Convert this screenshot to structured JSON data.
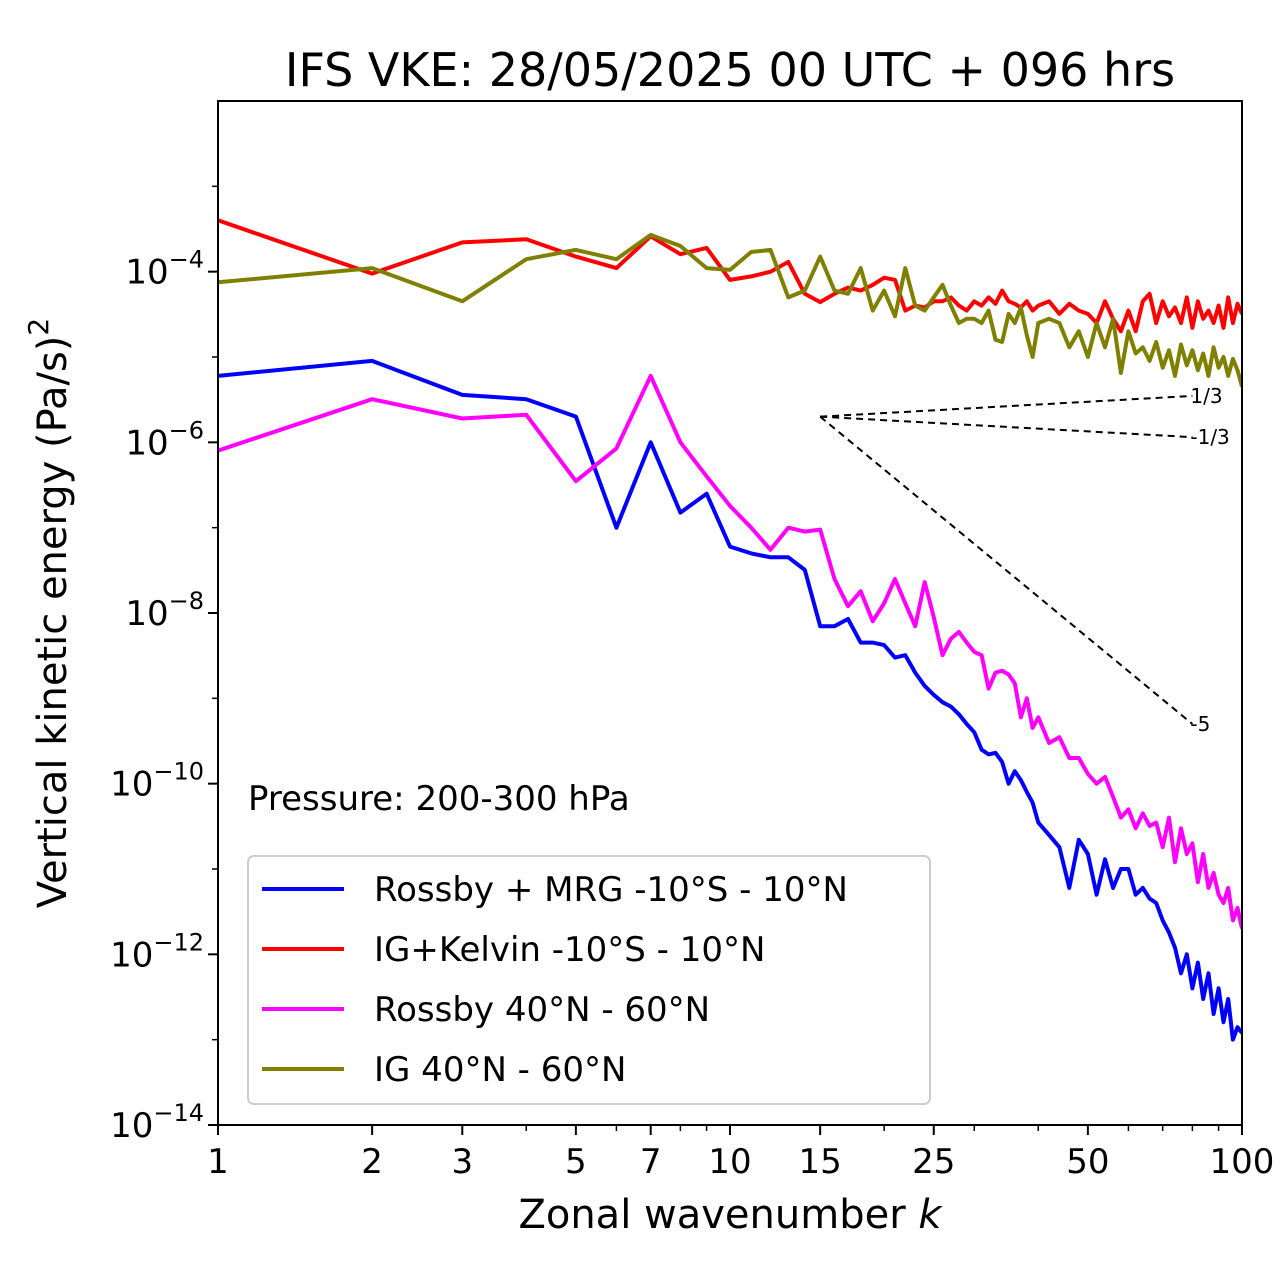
{
  "chart_data": {
    "type": "line",
    "title": "IFS VKE: 28/05/2025 00 UTC + 096 hrs",
    "xlabel": "Zonal wavenumber",
    "xlabel_symbol": "k",
    "ylabel": "Vertical kinetic energy (Pa/s)",
    "ylabel_exponent": "2",
    "xscale": "log",
    "yscale": "log",
    "xlim": [
      1,
      100
    ],
    "ylim": [
      1e-14,
      0.01
    ],
    "x_ticks": [
      1,
      2,
      3,
      5,
      7,
      10,
      15,
      25,
      50,
      100
    ],
    "x_tick_labels": [
      "1",
      "2",
      "3",
      "5",
      "7",
      "10",
      "15",
      "25",
      "50",
      "100"
    ],
    "y_ticks": [
      0.0001,
      1e-06,
      1e-08,
      1e-10,
      1e-12,
      1e-14
    ],
    "y_tick_labels": [
      {
        "base": "10",
        "exp": "−4"
      },
      {
        "base": "10",
        "exp": "−6"
      },
      {
        "base": "10",
        "exp": "−8"
      },
      {
        "base": "10",
        "exp": "−10"
      },
      {
        "base": "10",
        "exp": "−12"
      },
      {
        "base": "10",
        "exp": "−14"
      }
    ],
    "annotation": "Pressure: 200-300 hPa",
    "grid": false,
    "legend_position": "lower-left",
    "reference_lines": [
      {
        "slope_label": "1/3",
        "x": [
          15,
          80
        ],
        "y": [
          2e-06,
          3.5e-06
        ],
        "style": "dashed",
        "color": "#000000"
      },
      {
        "slope_label": "-1/3",
        "x": [
          15,
          80
        ],
        "y": [
          2e-06,
          1.15e-06
        ],
        "style": "dashed",
        "color": "#000000"
      },
      {
        "slope_label": "-5",
        "x": [
          15,
          80
        ],
        "y": [
          2e-06,
          5e-10
        ],
        "style": "dashed",
        "color": "#000000"
      }
    ],
    "series": [
      {
        "name": "Rossby + MRG -10°S - 10°N",
        "color": "#0000ff",
        "x": [
          1,
          2,
          3,
          4,
          5,
          6,
          7,
          8,
          9,
          10,
          11,
          12,
          13,
          14,
          15,
          16,
          17,
          18,
          19,
          20,
          21,
          22,
          23,
          24,
          25,
          26,
          27,
          28,
          29,
          30,
          31,
          32,
          33,
          34,
          35,
          36,
          37,
          38,
          39,
          40,
          42,
          44,
          46,
          48,
          50,
          52,
          54,
          56,
          58,
          60,
          62,
          64,
          66,
          68,
          70,
          72,
          74,
          76,
          78,
          80,
          82,
          84,
          86,
          88,
          90,
          92,
          94,
          96,
          98,
          100
        ],
        "y": [
          6e-06,
          9e-06,
          3.6e-06,
          3.2e-06,
          2e-06,
          1e-07,
          1e-06,
          1.5e-07,
          2.5e-07,
          6e-08,
          5e-08,
          4.5e-08,
          4.5e-08,
          3.2e-08,
          7e-09,
          7e-09,
          8.5e-09,
          4.5e-09,
          4.5e-09,
          4.2e-09,
          3e-09,
          3.2e-09,
          2e-09,
          1.4e-09,
          1.1e-09,
          9e-10,
          8e-10,
          6.5e-10,
          5e-10,
          4e-10,
          2.5e-10,
          2.2e-10,
          2.3e-10,
          1.8e-10,
          1e-10,
          1.4e-10,
          1.1e-10,
          8e-11,
          6e-11,
          3.5e-11,
          2.5e-11,
          1.8e-11,
          6e-12,
          2.2e-11,
          1.5e-11,
          5e-12,
          1.3e-11,
          6e-12,
          1e-11,
          1e-11,
          5e-12,
          6e-12,
          4.5e-12,
          4e-12,
          2.5e-12,
          1.8e-12,
          1.2e-12,
          6e-13,
          1e-12,
          4e-13,
          8e-13,
          3e-13,
          6e-13,
          2e-13,
          4e-13,
          1.6e-13,
          3e-13,
          1e-13,
          1.4e-13,
          1.2e-13
        ]
      },
      {
        "name": "IG+Kelvin -10°S - 10°N",
        "color": "#ff0000",
        "x": [
          1,
          2,
          3,
          4,
          5,
          6,
          7,
          8,
          9,
          10,
          11,
          12,
          13,
          14,
          15,
          16,
          17,
          18,
          19,
          20,
          21,
          22,
          23,
          24,
          25,
          26,
          27,
          28,
          29,
          30,
          31,
          32,
          33,
          34,
          35,
          36,
          37,
          38,
          39,
          40,
          42,
          44,
          46,
          48,
          50,
          52,
          54,
          56,
          58,
          60,
          62,
          64,
          66,
          68,
          70,
          72,
          74,
          76,
          78,
          80,
          82,
          84,
          86,
          88,
          90,
          92,
          94,
          96,
          98,
          100
        ],
        "y": [
          0.0004,
          9.5e-05,
          0.00022,
          0.00024,
          0.00015,
          0.00011,
          0.00026,
          0.00016,
          0.00019,
          8e-05,
          8.8e-05,
          0.0001,
          0.00013,
          5.5e-05,
          4.4e-05,
          5.5e-05,
          6.5e-05,
          6e-05,
          7e-05,
          8.5e-05,
          8e-05,
          3.5e-05,
          4e-05,
          3.8e-05,
          4.5e-05,
          4.5e-05,
          5e-05,
          4e-05,
          3.5e-05,
          4.5e-05,
          4e-05,
          5e-05,
          4.2e-05,
          6e-05,
          4.5e-05,
          4.2e-05,
          3.8e-05,
          4.5e-05,
          3.5e-05,
          4e-05,
          4.5e-05,
          3.2e-05,
          4.2e-05,
          3.5e-05,
          3.2e-05,
          2.5e-05,
          4.5e-05,
          2.8e-05,
          2e-05,
          3.5e-05,
          2e-05,
          4.5e-05,
          5.5e-05,
          2.5e-05,
          4.5e-05,
          3e-05,
          3.8e-05,
          2.5e-05,
          5e-05,
          2.2e-05,
          4.5e-05,
          2.8e-05,
          3.5e-05,
          2.5e-05,
          4e-05,
          2.2e-05,
          5e-05,
          2.5e-05,
          4.2e-05,
          3.2e-05
        ]
      },
      {
        "name": "Rossby 40°N - 60°N",
        "color": "#ff00ff",
        "x": [
          1,
          2,
          3,
          4,
          5,
          6,
          7,
          8,
          9,
          10,
          11,
          12,
          13,
          14,
          15,
          16,
          17,
          18,
          19,
          20,
          21,
          22,
          23,
          24,
          25,
          26,
          27,
          28,
          29,
          30,
          31,
          32,
          33,
          34,
          35,
          36,
          37,
          38,
          39,
          40,
          42,
          44,
          46,
          48,
          50,
          52,
          54,
          56,
          58,
          60,
          62,
          64,
          66,
          68,
          70,
          72,
          74,
          76,
          78,
          80,
          82,
          84,
          86,
          88,
          90,
          92,
          94,
          96,
          98,
          100
        ],
        "y": [
          8e-07,
          3.2e-06,
          1.9e-06,
          2.1e-06,
          3.5e-07,
          8.5e-07,
          6e-06,
          1e-06,
          4e-07,
          1.8e-07,
          1e-07,
          5.5e-08,
          1e-07,
          9e-08,
          9.5e-08,
          2.5e-08,
          1.2e-08,
          1.8e-08,
          8e-09,
          1.3e-08,
          2.5e-08,
          1.3e-08,
          7e-09,
          2.3e-08,
          9e-09,
          3.2e-09,
          5e-09,
          6e-09,
          4.5e-09,
          3.5e-09,
          3.2e-09,
          1.3e-09,
          2e-09,
          2.1e-09,
          1.9e-09,
          1.5e-09,
          6e-10,
          1e-09,
          4.5e-10,
          6e-10,
          3e-10,
          3.5e-10,
          2e-10,
          2e-10,
          1.3e-10,
          1e-10,
          1.2e-10,
          7e-11,
          4e-11,
          5e-11,
          3e-11,
          4.5e-11,
          3.2e-11,
          3.5e-11,
          1.8e-11,
          4e-11,
          1.2e-11,
          3e-11,
          1.5e-11,
          2e-11,
          7e-12,
          1.5e-11,
          6e-12,
          9e-12,
          5e-12,
          4e-12,
          6e-12,
          2.5e-12,
          3.5e-12,
          2e-12
        ]
      },
      {
        "name": "IG 40°N - 60°N",
        "color": "#808000",
        "x": [
          1,
          2,
          3,
          4,
          5,
          6,
          7,
          8,
          9,
          10,
          11,
          12,
          13,
          14,
          15,
          16,
          17,
          18,
          19,
          20,
          21,
          22,
          23,
          24,
          25,
          26,
          27,
          28,
          29,
          30,
          31,
          32,
          33,
          34,
          35,
          36,
          37,
          38,
          39,
          40,
          42,
          44,
          46,
          48,
          50,
          52,
          54,
          56,
          58,
          60,
          62,
          64,
          66,
          68,
          70,
          72,
          74,
          76,
          78,
          80,
          82,
          84,
          86,
          88,
          90,
          92,
          94,
          96,
          98,
          100
        ],
        "y": [
          7.5e-05,
          0.00011,
          4.5e-05,
          0.00014,
          0.00018,
          0.00014,
          0.00027,
          0.0002,
          0.00011,
          0.000105,
          0.00017,
          0.00018,
          5e-05,
          6e-05,
          0.00015,
          6e-05,
          5.5e-05,
          0.00011,
          3.5e-05,
          6e-05,
          3e-05,
          0.00011,
          4e-05,
          3.5e-05,
          5e-05,
          7e-05,
          4e-05,
          2.5e-05,
          2.8e-05,
          2.8e-05,
          2.5e-05,
          3.5e-05,
          1.6e-05,
          1.5e-05,
          3.2e-05,
          2.5e-05,
          3.8e-05,
          1.8e-05,
          1e-05,
          2.5e-05,
          2.8e-05,
          2.5e-05,
          1.3e-05,
          2e-05,
          1e-05,
          2.5e-05,
          1.3e-05,
          2.8e-05,
          6.5e-06,
          2e-05,
          1.1e-05,
          1.3e-05,
          9e-06,
          1.5e-05,
          7.5e-06,
          1.2e-05,
          6e-06,
          1.4e-05,
          8e-06,
          1.2e-05,
          7e-06,
          1.1e-05,
          6e-06,
          1.3e-05,
          7.5e-06,
          1e-05,
          6e-06,
          9.5e-06,
          7e-06,
          4.5e-06
        ]
      }
    ]
  }
}
